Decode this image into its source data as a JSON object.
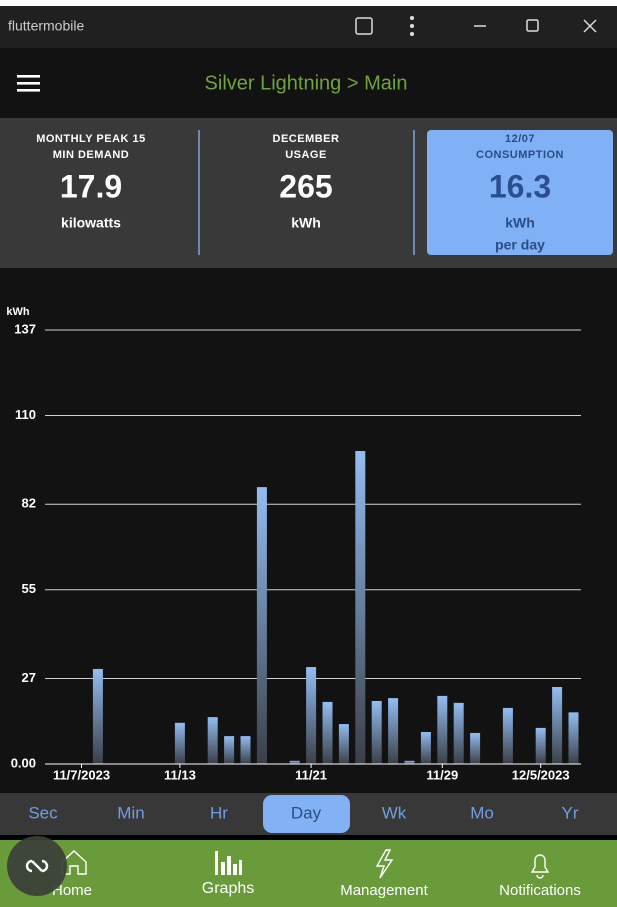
{
  "window": {
    "title": "fluttermobile"
  },
  "app_bar": {
    "title": "Silver Lightning > Main"
  },
  "stats": [
    {
      "label_lines": [
        "MONTHLY PEAK 15",
        "MIN DEMAND"
      ],
      "value": "17.9",
      "unit_lines": [
        "kilowatts"
      ]
    },
    {
      "label_lines": [
        "DECEMBER",
        "USAGE"
      ],
      "value": "265",
      "unit_lines": [
        "kWh"
      ]
    },
    {
      "label_lines": [
        "12/07",
        "CONSUMPTION"
      ],
      "value": "16.3",
      "unit_lines": [
        "kWh",
        "per day"
      ]
    }
  ],
  "chart_data": {
    "type": "bar",
    "y_label": "kWh",
    "categories": [
      "11/7/2023",
      null,
      null,
      null,
      null,
      null,
      "11/13",
      null,
      null,
      null,
      null,
      null,
      null,
      null,
      "11/21",
      null,
      null,
      null,
      null,
      null,
      null,
      null,
      "11/29",
      null,
      null,
      null,
      null,
      null,
      "12/5/2023",
      null,
      null
    ],
    "values": [
      0,
      30,
      0,
      0,
      0,
      0,
      13,
      0,
      14.8,
      8.8,
      8.8,
      87.4,
      0,
      1,
      30.6,
      19.6,
      12.6,
      98.8,
      19.9,
      20.8,
      1,
      10.1,
      21.5,
      19.3,
      9.8,
      0,
      17.7,
      0,
      11.4,
      24.3,
      16.3
    ],
    "color": "#93bdf2",
    "ylim": [
      0,
      137
    ],
    "yticks": [
      {
        "value": 0,
        "label": "0.00"
      },
      27,
      55,
      82,
      110,
      137
    ],
    "grid": true
  },
  "tabs": {
    "items": [
      "Sec",
      "Min",
      "Hr",
      "Day",
      "Wk",
      "Mo",
      "Yr"
    ],
    "selected": 3
  },
  "nav": {
    "items": [
      "Home",
      "Graphs",
      "Management",
      "Notifications"
    ],
    "selected": 1
  }
}
